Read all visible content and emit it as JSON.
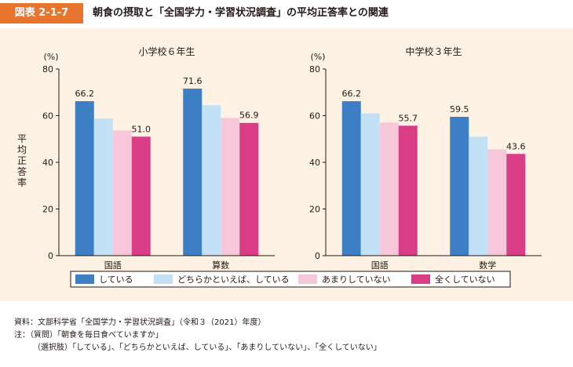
{
  "header": {
    "figure_label": "図表 2-1-7",
    "title": "朝食の摂取と「全国学力・学習状況調査」の平均正答率との関連"
  },
  "notes": {
    "source": "資料：文部科学省「全国学力・学習状況調査」（令和３（2021）年度）",
    "note1": "注：（質問）「朝食を毎日食べていますか」",
    "note2": "（選択肢）「している」、「どちらかといえば、している」、「あまりしていない」、「全くしていない」"
  },
  "chart_data": {
    "type": "bar",
    "unit_label": "(%)",
    "ylabel": "平均正答率",
    "ylim": [
      0,
      80
    ],
    "yticks": [
      0,
      20,
      40,
      60,
      80
    ],
    "legend_position": "bottom",
    "series": [
      {
        "name": "している",
        "color": "#3d7fc4"
      },
      {
        "name": "どちらかといえば、している",
        "color": "#c2e1f6"
      },
      {
        "name": "あまりしていない",
        "color": "#f5c7d8"
      },
      {
        "name": "全くしていない",
        "color": "#d93d86"
      }
    ],
    "charts": [
      {
        "title": "小学校６年生",
        "categories": [
          "国語",
          "算数"
        ],
        "values": [
          [
            66.2,
            58.8,
            53.6,
            51.0
          ],
          [
            71.6,
            64.5,
            59.0,
            56.9
          ]
        ],
        "labels": [
          [
            "66.2",
            "",
            "",
            "51.0"
          ],
          [
            "71.6",
            "",
            "",
            "56.9"
          ]
        ]
      },
      {
        "title": "中学校３年生",
        "categories": [
          "国語",
          "数学"
        ],
        "values": [
          [
            66.2,
            61.0,
            57.0,
            55.7
          ],
          [
            59.5,
            51.0,
            45.6,
            43.6
          ]
        ],
        "labels": [
          [
            "66.2",
            "",
            "",
            "55.7"
          ],
          [
            "59.5",
            "",
            "",
            "43.6"
          ]
        ]
      }
    ]
  }
}
